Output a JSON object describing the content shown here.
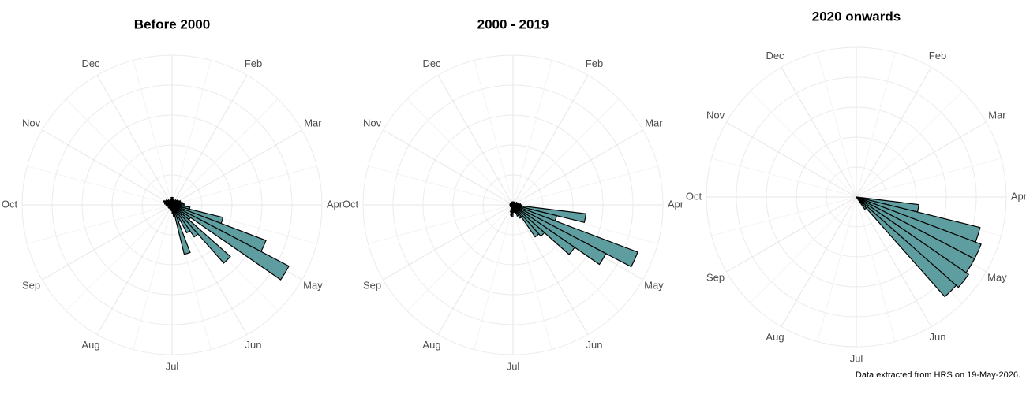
{
  "chart_data": [
    {
      "type": "rose",
      "title": "Before 2000",
      "categories": [
        null,
        "Feb",
        "Mar",
        "Apr",
        "May",
        "Jun",
        "Jul",
        "Aug",
        "Sep",
        "Oct",
        "Nov",
        "Dec"
      ],
      "x": [
        1,
        2,
        3,
        4,
        5,
        6,
        7,
        8,
        9,
        10,
        11,
        12,
        13,
        14,
        15,
        16,
        17,
        18,
        19,
        20,
        21,
        22,
        23,
        24,
        25,
        26,
        27,
        28,
        29,
        30,
        31,
        32,
        33,
        34,
        35,
        36,
        37,
        38,
        39,
        40,
        41,
        42,
        43,
        44,
        45,
        46,
        47,
        48,
        49,
        50,
        51,
        52
      ],
      "values": [
        5,
        4,
        4,
        3,
        3,
        4,
        4,
        5,
        5,
        6,
        6,
        7,
        8,
        8,
        12,
        35,
        67,
        88,
        15,
        52,
        26,
        21,
        12,
        34,
        8,
        6,
        4,
        3,
        3,
        3,
        2,
        2,
        3,
        3,
        2,
        2,
        3,
        3,
        4,
        4,
        5,
        5,
        6,
        5,
        5,
        4,
        4,
        3,
        3,
        4,
        4,
        5
      ],
      "xlim": [
        0,
        52
      ],
      "ylim": [
        0,
        100
      ],
      "color": "#5f9ea0",
      "grid": true
    },
    {
      "type": "rose",
      "title": "2000 - 2019",
      "categories": [
        null,
        "Feb",
        "Mar",
        "Apr",
        "May",
        "Jun",
        "Jul",
        "Aug",
        "Sep",
        "Oct",
        "Nov",
        "Dec"
      ],
      "x": [
        1,
        2,
        3,
        4,
        5,
        6,
        7,
        8,
        9,
        10,
        11,
        12,
        13,
        14,
        15,
        16,
        17,
        18,
        19,
        20,
        21,
        22,
        23,
        24,
        25,
        26,
        27,
        28,
        29,
        30,
        31,
        32,
        33,
        34,
        35,
        36,
        37,
        38,
        39,
        40,
        41,
        42,
        43,
        44,
        45,
        46,
        47,
        48,
        49,
        50,
        51,
        52
      ],
      "values": [
        2,
        2,
        2,
        2,
        2,
        2,
        2,
        2,
        3,
        3,
        3,
        4,
        5,
        6,
        49,
        30,
        89,
        70,
        50,
        28,
        26,
        10,
        8,
        6,
        5,
        4,
        8,
        7,
        5,
        3,
        2,
        2,
        2,
        2,
        2,
        2,
        2,
        2,
        2,
        2,
        2,
        2,
        2,
        2,
        2,
        2,
        2,
        2,
        2,
        2,
        2,
        2
      ],
      "xlim": [
        0,
        52
      ],
      "ylim": [
        0,
        100
      ],
      "color": "#5f9ea0",
      "grid": true
    },
    {
      "type": "rose",
      "title": "2020 onwards",
      "categories": [
        null,
        "Feb",
        "Mar",
        "Apr",
        "May",
        "Jun",
        "Jul",
        "Aug",
        "Sep",
        "Oct",
        "Nov",
        "Dec"
      ],
      "x": [
        1,
        2,
        3,
        4,
        5,
        6,
        7,
        8,
        9,
        10,
        11,
        12,
        13,
        14,
        15,
        16,
        17,
        18,
        19,
        20,
        21,
        22,
        23,
        24,
        25,
        26,
        27,
        28,
        29,
        30,
        31,
        32,
        33,
        34,
        35,
        36,
        37,
        38,
        39,
        40,
        41,
        42,
        43,
        44,
        45,
        46,
        47,
        48,
        49,
        50,
        51,
        52
      ],
      "values": [
        0,
        0,
        0,
        0,
        0,
        0,
        0,
        0,
        0,
        0,
        0,
        0,
        0,
        0,
        42,
        85,
        89,
        89,
        91,
        89,
        10,
        0,
        0,
        0,
        0,
        0,
        0,
        0,
        0,
        0,
        0,
        0,
        0,
        0,
        0,
        0,
        0,
        0,
        0,
        0,
        0,
        0,
        0,
        0,
        0,
        0,
        0,
        0,
        0,
        0,
        0,
        0
      ],
      "xlim": [
        0,
        52
      ],
      "ylim": [
        0,
        100
      ],
      "color": "#5f9ea0",
      "grid": true
    }
  ],
  "caption": "Data extracted from HRS on 19-May-2026."
}
